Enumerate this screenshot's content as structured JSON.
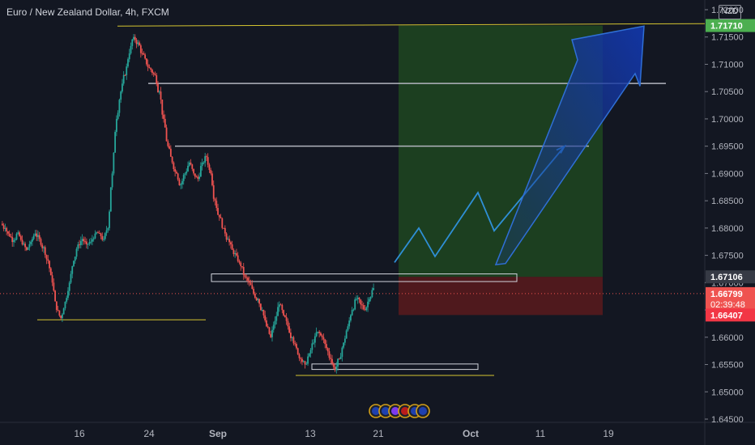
{
  "header": {
    "title": "Euro / New Zealand Dollar, 4h, FXCM",
    "currency_button": "NZD"
  },
  "colors": {
    "up": "#26a69a",
    "down": "#ef5350",
    "target_zone": "#1e4620",
    "stop_zone": "#5a1a1c",
    "arrow": "#1a3a8f",
    "horizontal_level": "#b2b5be",
    "yellow_line": "#d4c430"
  },
  "chart_data": {
    "type": "candlestick",
    "symbol": "EURNZD",
    "timeframe": "4h",
    "ylim": [
      1.645,
      1.72
    ],
    "yticks": [
      "1.72000",
      "1.71500",
      "1.71000",
      "1.70500",
      "1.70000",
      "1.69500",
      "1.69000",
      "1.68500",
      "1.68000",
      "1.67500",
      "1.67000",
      "1.66500",
      "1.66000",
      "1.65500",
      "1.65000",
      "1.64500"
    ],
    "xticks": [
      "16",
      "24",
      "Sep",
      "13",
      "21",
      "Oct",
      "11",
      "19"
    ],
    "close_series": [
      1.68,
      1.6785,
      1.6778,
      1.6792,
      1.677,
      1.676,
      1.6775,
      1.679,
      1.678,
      1.6765,
      1.674,
      1.67,
      1.665,
      1.6635,
      1.6665,
      1.67,
      1.674,
      1.677,
      1.678,
      1.677,
      1.6775,
      1.679,
      1.679,
      1.678,
      1.68,
      1.69,
      1.7,
      1.705,
      1.708,
      1.712,
      1.715,
      1.714,
      1.712,
      1.71,
      1.709,
      1.708,
      1.705,
      1.7,
      1.695,
      1.692,
      1.69,
      1.688,
      1.69,
      1.692,
      1.69,
      1.689,
      1.692,
      1.693,
      1.69,
      1.685,
      1.682,
      1.68,
      1.678,
      1.676,
      1.675,
      1.673,
      1.671,
      1.67,
      1.668,
      1.667,
      1.665,
      1.662,
      1.66,
      1.663,
      1.666,
      1.664,
      1.662,
      1.66,
      1.658,
      1.656,
      1.655,
      1.657,
      1.659,
      1.661,
      1.66,
      1.658,
      1.656,
      1.654,
      1.656,
      1.659,
      1.662,
      1.665,
      1.667,
      1.666,
      1.665,
      1.667,
      1.669
    ],
    "levels": [
      {
        "name": "top",
        "price": 1.717
      },
      {
        "name": "resistance-1",
        "price": 1.7065
      },
      {
        "name": "resistance-2",
        "price": 1.695
      },
      {
        "name": "support-low",
        "price": 1.664
      },
      {
        "name": "bottom",
        "price": 1.653
      }
    ],
    "position": {
      "type": "long",
      "entry": 1.67106,
      "target": 1.7171,
      "stop": 1.66407
    },
    "price_labels": [
      {
        "text": "1.71710",
        "price": 1.7171,
        "color": "#4caf50"
      },
      {
        "text": "1.67106",
        "price": 1.67106,
        "color": "#363a45"
      },
      {
        "text": "1.66799",
        "price": 1.66799,
        "color": "#ef5350",
        "sub": "02:39:48"
      },
      {
        "text": "1.66407",
        "price": 1.66407,
        "color": "#f23645"
      }
    ]
  }
}
